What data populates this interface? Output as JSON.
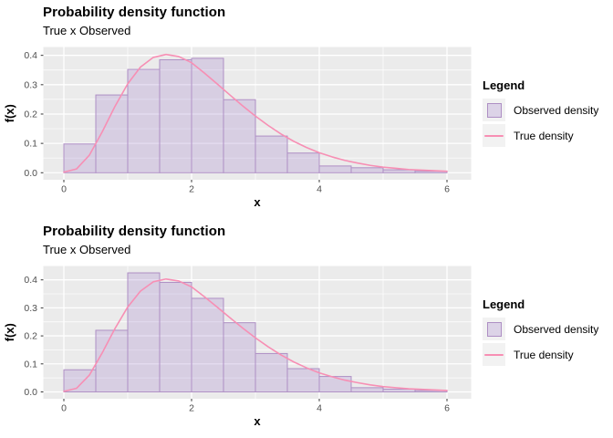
{
  "colors": {
    "panel_bg": "#EBEBEB",
    "gridline": "#FFFFFF",
    "bar_fill": "rgba(160,124,199,0.26)",
    "bar_stroke": "#AE8FC4",
    "curve": "#F78FB4",
    "legend_key_bg": "#F2F2F2",
    "tick_label": "#4D4D4D",
    "tick_mark": "#333333",
    "text": "#000000"
  },
  "chart_data": [
    {
      "type": "histogram+line",
      "title": "Probability density function",
      "subtitle": "True x Observed",
      "xlabel": "x",
      "ylabel": "f(x)",
      "legend": {
        "title": "Legend",
        "items": [
          {
            "label": "Observed density",
            "swatch": "rect"
          },
          {
            "label": "True density",
            "swatch": "line"
          }
        ]
      },
      "x_ticks": [
        0,
        2,
        4,
        6
      ],
      "x_tick_labels": [
        "0",
        "2",
        "4",
        "6"
      ],
      "x_minor": [
        1,
        3,
        5
      ],
      "y_ticks": [
        0,
        0.1,
        0.2,
        0.3,
        0.4
      ],
      "y_tick_labels": [
        "0.0",
        "0.1",
        "0.2",
        "0.3",
        "0.4"
      ],
      "y_minor": [
        0.05,
        0.15,
        0.25,
        0.35
      ],
      "xlim": [
        -0.32,
        6.38
      ],
      "ylim": [
        -0.024,
        0.4285
      ],
      "grid": true,
      "legend_position": "right",
      "bin_start": 0,
      "bin_width": 0.5,
      "series": [
        {
          "name": "Observed density",
          "type": "histogram",
          "values": [
            0.098,
            0.265,
            0.352,
            0.385,
            0.39,
            0.249,
            0.125,
            0.067,
            0.023,
            0.017,
            0.01,
            0.005
          ]
        },
        {
          "name": "True density",
          "type": "line",
          "x": [
            0,
            0.2,
            0.4,
            0.6,
            0.8,
            1,
            1.2,
            1.4,
            1.6,
            1.8,
            2,
            2.2,
            2.4,
            2.6,
            2.8,
            3,
            3.2,
            3.4,
            3.6,
            3.8,
            4,
            4.2,
            4.4,
            4.6,
            4.8,
            5,
            5.2,
            5.4,
            5.6,
            5.8,
            6
          ],
          "y": [
            0.002,
            0.013,
            0.06,
            0.139,
            0.226,
            0.303,
            0.36,
            0.393,
            0.403,
            0.396,
            0.375,
            0.34,
            0.303,
            0.265,
            0.228,
            0.193,
            0.161,
            0.132,
            0.107,
            0.086,
            0.068,
            0.054,
            0.042,
            0.033,
            0.025,
            0.019,
            0.015,
            0.011,
            0.009,
            0.007,
            0.005
          ]
        }
      ]
    },
    {
      "type": "histogram+line",
      "title": "Probability density function",
      "subtitle": "True x Observed",
      "xlabel": "x",
      "ylabel": "f(x)",
      "legend": {
        "title": "Legend",
        "items": [
          {
            "label": "Observed density",
            "swatch": "rect"
          },
          {
            "label": "True density",
            "swatch": "line"
          }
        ]
      },
      "x_ticks": [
        0,
        2,
        4,
        6
      ],
      "x_tick_labels": [
        "0",
        "2",
        "4",
        "6"
      ],
      "x_minor": [
        1,
        3,
        5
      ],
      "y_ticks": [
        0,
        0.1,
        0.2,
        0.3,
        0.4
      ],
      "y_tick_labels": [
        "0.0",
        "0.1",
        "0.2",
        "0.3",
        "0.4"
      ],
      "y_minor": [
        0.05,
        0.15,
        0.25,
        0.35
      ],
      "xlim": [
        -0.32,
        6.38
      ],
      "ylim": [
        -0.0245,
        0.4495
      ],
      "grid": true,
      "legend_position": "right",
      "bin_start": 0,
      "bin_width": 0.5,
      "series": [
        {
          "name": "Observed density",
          "type": "histogram",
          "values": [
            0.079,
            0.22,
            0.425,
            0.391,
            0.334,
            0.247,
            0.137,
            0.083,
            0.055,
            0.015,
            0.01,
            0.005
          ]
        },
        {
          "name": "True density",
          "type": "line",
          "x": [
            0,
            0.2,
            0.4,
            0.6,
            0.8,
            1,
            1.2,
            1.4,
            1.6,
            1.8,
            2,
            2.2,
            2.4,
            2.6,
            2.8,
            3,
            3.2,
            3.4,
            3.6,
            3.8,
            4,
            4.2,
            4.4,
            4.6,
            4.8,
            5,
            5.2,
            5.4,
            5.6,
            5.8,
            6
          ],
          "y": [
            0.002,
            0.013,
            0.06,
            0.139,
            0.226,
            0.303,
            0.36,
            0.393,
            0.403,
            0.396,
            0.375,
            0.34,
            0.303,
            0.265,
            0.228,
            0.193,
            0.161,
            0.132,
            0.107,
            0.086,
            0.068,
            0.054,
            0.042,
            0.033,
            0.025,
            0.019,
            0.015,
            0.011,
            0.009,
            0.007,
            0.005
          ]
        }
      ]
    }
  ]
}
